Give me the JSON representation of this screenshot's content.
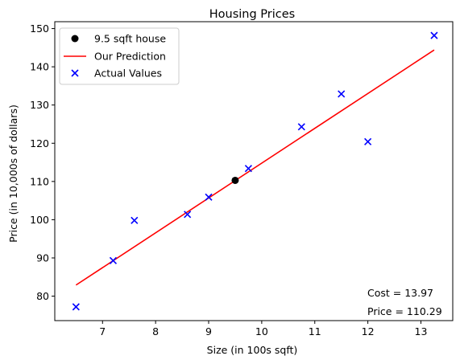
{
  "chart_data": {
    "type": "scatter",
    "title": "Housing Prices",
    "xlabel": "Size (in 100s sqft)",
    "ylabel": "Price (in 10,000s of dollars)",
    "xlim": [
      6.1,
      13.6
    ],
    "ylim": [
      73.6,
      151.8
    ],
    "xticks": [
      7,
      8,
      9,
      10,
      11,
      12,
      13
    ],
    "yticks": [
      80,
      90,
      100,
      110,
      120,
      130,
      140,
      150
    ],
    "grid": false,
    "legend_position": "top-left",
    "series": [
      {
        "name": "Actual Values",
        "kind": "scatter",
        "marker": "x",
        "color": "#0000ff",
        "points": [
          [
            6.5,
            77.2
          ],
          [
            7.2,
            89.3
          ],
          [
            7.6,
            99.8
          ],
          [
            8.6,
            101.4
          ],
          [
            9.0,
            105.9
          ],
          [
            9.75,
            113.4
          ],
          [
            10.75,
            124.3
          ],
          [
            11.5,
            132.9
          ],
          [
            12.0,
            120.4
          ],
          [
            13.25,
            148.2
          ]
        ]
      },
      {
        "name": "Our Prediction",
        "kind": "line",
        "color": "#ff0000",
        "points": [
          [
            6.5,
            82.9
          ],
          [
            13.25,
            144.4
          ]
        ]
      },
      {
        "name": "9.5 sqft house",
        "kind": "scatter",
        "marker": "o",
        "color": "#000000",
        "points": [
          [
            9.5,
            110.29
          ]
        ]
      }
    ],
    "annotations": {
      "cost": "Cost = 13.97",
      "price": "Price = 110.29"
    }
  }
}
